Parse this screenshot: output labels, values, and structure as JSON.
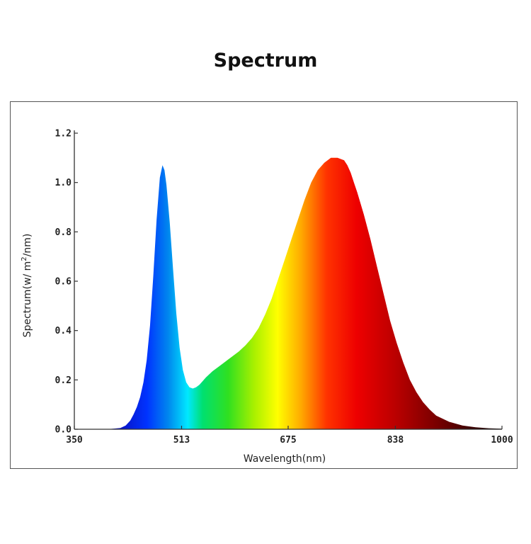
{
  "title": "Spectrum",
  "chart_data": {
    "type": "area",
    "title": "Spectrum",
    "xlabel": "Wavelength(nm)",
    "ylabel": "Spectrum(w/ m²/nm)",
    "ylabel_parts": {
      "before": "Spectrum(w/ m",
      "sup": "2",
      "after": "/nm)"
    },
    "xlim": [
      350,
      1000
    ],
    "ylim": [
      0,
      1.2
    ],
    "x_ticks": [
      350,
      513,
      675,
      838,
      1000
    ],
    "x_tick_labels": [
      "350",
      "513",
      "675",
      "838",
      "1000"
    ],
    "y_ticks": [
      0,
      0.2,
      0.4,
      0.6,
      0.8,
      1.0,
      1.2
    ],
    "y_tick_labels": [
      "0.0",
      "0.2",
      "0.4",
      "0.6",
      "0.8",
      "1.0",
      "1.2"
    ],
    "grid": false,
    "legend": "none",
    "fill": "visible-spectrum-gradient",
    "series": [
      {
        "x": [
          350,
          380,
          400,
          420,
          428,
          435,
          440,
          445,
          450,
          455,
          460,
          465,
          470,
          475,
          480,
          484,
          487,
          490,
          495,
          500,
          505,
          510,
          515,
          520,
          525,
          530,
          535,
          540,
          545,
          550,
          560,
          570,
          580,
          590,
          600,
          610,
          620,
          630,
          640,
          650,
          660,
          670,
          680,
          690,
          700,
          710,
          720,
          730,
          740,
          750,
          760,
          765,
          770,
          775,
          780,
          790,
          800,
          810,
          820,
          830,
          840,
          850,
          860,
          870,
          880,
          890,
          900,
          920,
          940,
          960,
          980,
          1000
        ],
        "y": [
          0,
          0,
          0,
          0.005,
          0.015,
          0.035,
          0.06,
          0.09,
          0.13,
          0.19,
          0.28,
          0.42,
          0.62,
          0.85,
          1.02,
          1.07,
          1.05,
          0.99,
          0.84,
          0.65,
          0.47,
          0.33,
          0.24,
          0.19,
          0.17,
          0.165,
          0.17,
          0.18,
          0.195,
          0.21,
          0.235,
          0.255,
          0.275,
          0.295,
          0.315,
          0.34,
          0.37,
          0.41,
          0.465,
          0.53,
          0.61,
          0.69,
          0.77,
          0.85,
          0.93,
          1.0,
          1.05,
          1.08,
          1.1,
          1.1,
          1.09,
          1.07,
          1.04,
          1.0,
          0.96,
          0.87,
          0.77,
          0.66,
          0.55,
          0.44,
          0.35,
          0.27,
          0.2,
          0.15,
          0.11,
          0.08,
          0.055,
          0.03,
          0.015,
          0.008,
          0.004,
          0.002
        ]
      }
    ]
  }
}
